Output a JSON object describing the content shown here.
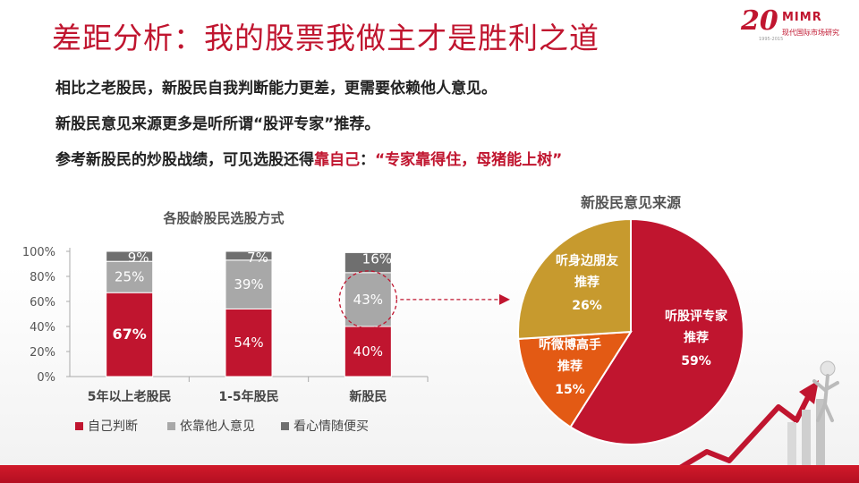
{
  "title": "差距分析：我的股票我做主才是胜利之道",
  "logo": {
    "num": "20",
    "brand": "MIMR",
    "cn": "现代国际市场研究",
    "years": "1995-2015"
  },
  "lines": {
    "l1": "相比之老股民，新股民自我判断能力更差，更需要依赖他人意见。",
    "l2": "新股民意见来源更多是听所谓“股评专家”推荐。",
    "l3_a": "参考新股民的炒股战绩，可见选股还得",
    "l3_b": "靠自己",
    "l3_c": "：",
    "l3_d": "“专家靠得住，母猪能上树”"
  },
  "chart_data": [
    {
      "type": "bar",
      "stacked": true,
      "title": "各股龄股民选股方式",
      "categories": [
        "5年以上老股民",
        "1-5年股民",
        "新股民"
      ],
      "ylim": [
        0,
        100
      ],
      "yticks": [
        "0%",
        "20%",
        "40%",
        "60%",
        "80%",
        "100%"
      ],
      "series": [
        {
          "name": "自己判断",
          "values": [
            67,
            54,
            40
          ],
          "labels": [
            "67%",
            "54%",
            "40%"
          ],
          "color": "#c0152f"
        },
        {
          "name": "依靠他人意见",
          "values": [
            25,
            39,
            43
          ],
          "labels": [
            "25%",
            "39%",
            "43%"
          ],
          "color": "#a8a8a8"
        },
        {
          "name": "看心情随便买",
          "values": [
            9,
            7,
            16
          ],
          "labels": [
            "9%",
            "7%",
            "16%"
          ],
          "color": "#6f6f6f"
        }
      ],
      "legend": "bottom",
      "highlight": {
        "category": "新股民",
        "series": "依靠他人意见"
      }
    },
    {
      "type": "pie",
      "title": "新股民意见来源",
      "slices": [
        {
          "label1": "听股评专家",
          "label2": "推荐",
          "pct": "59%",
          "value": 59,
          "color": "#c0152f"
        },
        {
          "label1": "听微博高手",
          "label2": "推荐",
          "pct": "15%",
          "value": 15,
          "color": "#e35a14"
        },
        {
          "label1": "听身边朋友",
          "label2": "推荐",
          "pct": "26%",
          "value": 26,
          "color": "#c79a2e"
        }
      ]
    }
  ]
}
